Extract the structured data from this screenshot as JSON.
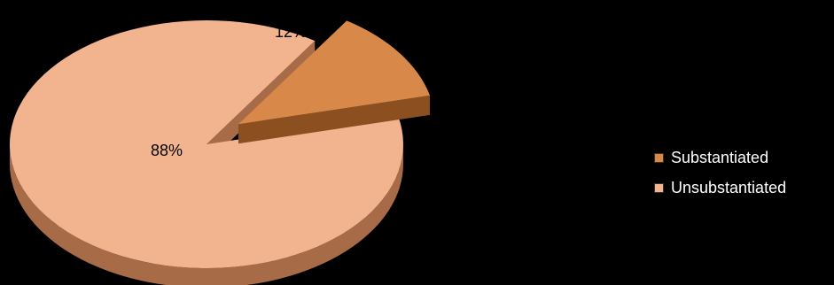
{
  "chart_data": {
    "type": "pie",
    "title": "",
    "categories": [
      "Substantiated",
      "Unsubstantiated"
    ],
    "values": [
      12,
      88
    ],
    "labels": [
      "12%",
      "88%"
    ],
    "colors": {
      "Substantiated": {
        "top": "#d8894a",
        "side": "#8c4f20"
      },
      "Unsubstantiated": {
        "top": "#f2b48e",
        "side": "#a86b48"
      }
    },
    "exploded": "Substantiated",
    "three_d": true,
    "legend_position": "right",
    "background": "#000000"
  }
}
